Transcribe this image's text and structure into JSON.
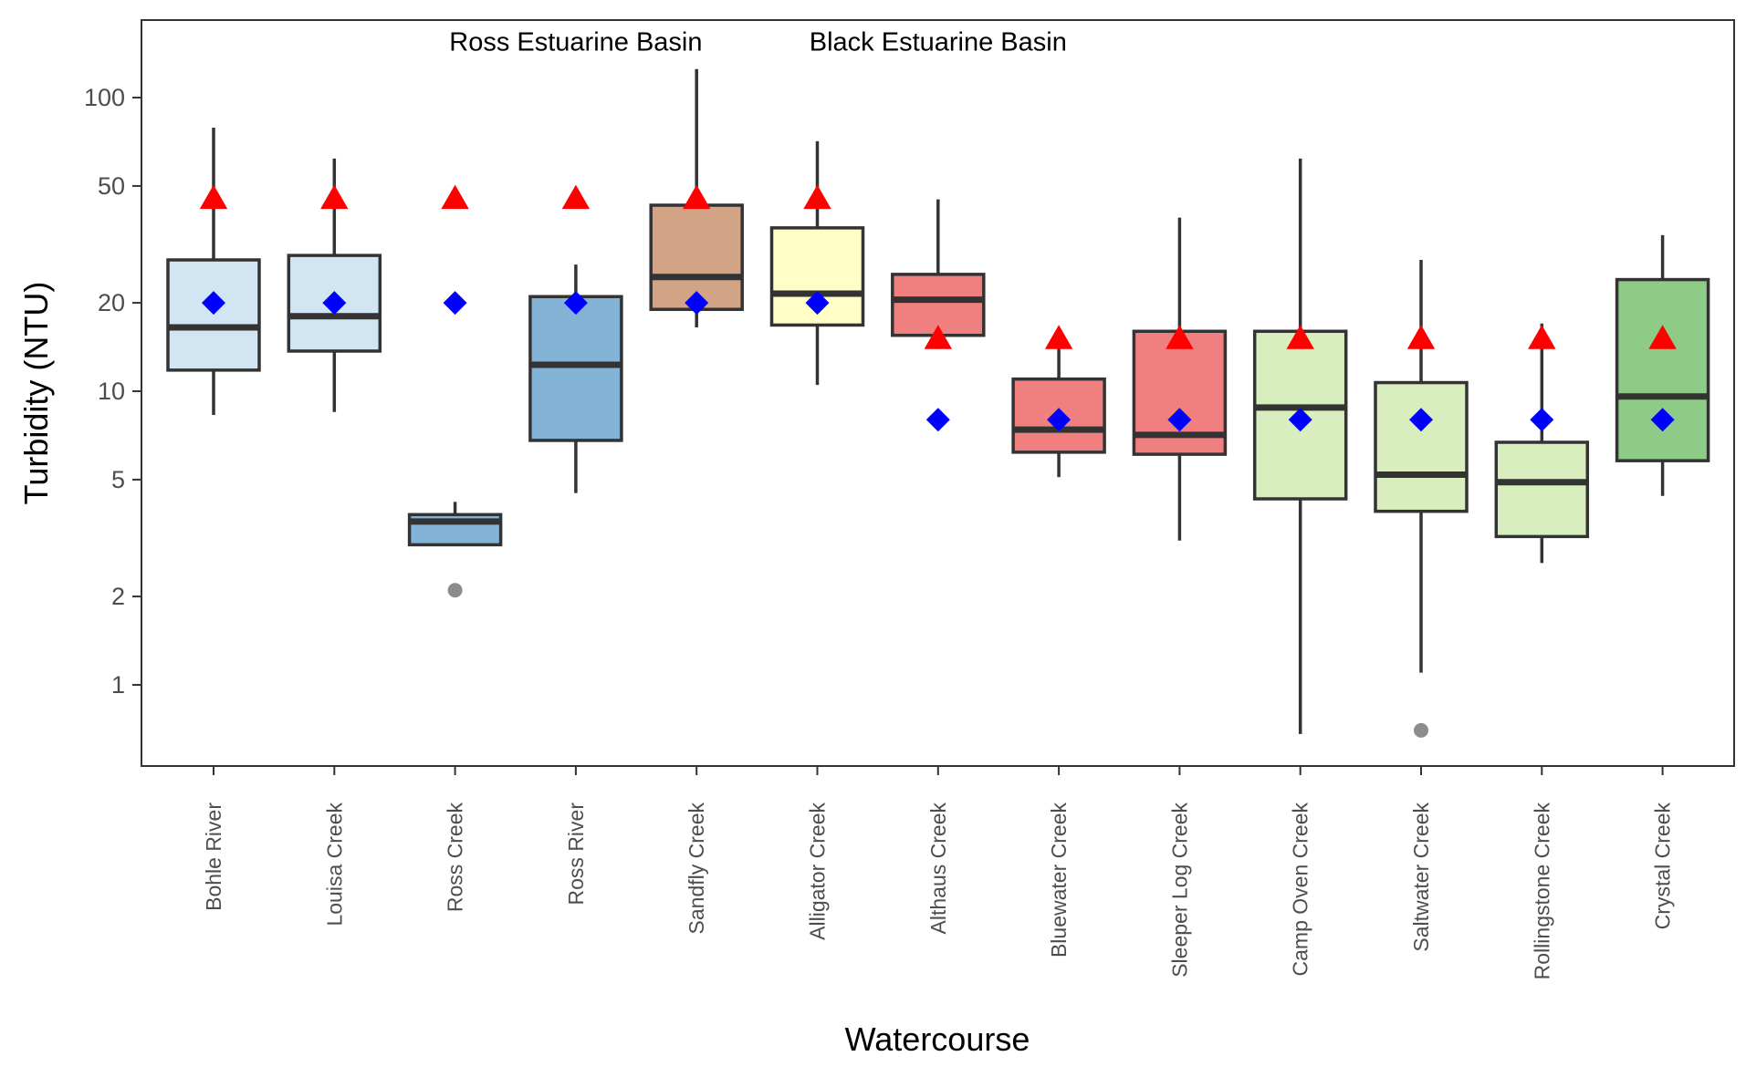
{
  "chart_data": {
    "type": "box",
    "xlabel": "Watercourse",
    "ylabel": "Turbidity (NTU)",
    "yscale": "log",
    "ylim": [
      0.5,
      200
    ],
    "yticks": [
      1,
      2,
      5,
      10,
      20,
      50,
      100
    ],
    "grid": false,
    "legend": "none",
    "annotations": [
      {
        "text": "Ross Estuarine Basin",
        "x_category": "Ross River",
        "y": 155
      },
      {
        "text": "Black Estuarine Basin",
        "x_category": "Althaus Creek",
        "y": 155
      }
    ],
    "categories": [
      "Bohle River",
      "Louisa Creek",
      "Ross Creek",
      "Ross River",
      "Sandfly Creek",
      "Alligator Creek",
      "Althaus Creek",
      "Bluewater Creek",
      "Sleeper Log Creek",
      "Camp Oven Creek",
      "Saltwater Creek",
      "Rollingstone Creek",
      "Crystal Creek"
    ],
    "boxes": [
      {
        "category": "Bohle River",
        "whisker_low": 8.3,
        "q1": 11.8,
        "median": 16.5,
        "q3": 28,
        "whisker_high": 79,
        "outliers": [],
        "fill": "#d2e5f3"
      },
      {
        "category": "Louisa Creek",
        "whisker_low": 8.5,
        "q1": 13.7,
        "median": 18,
        "q3": 29,
        "whisker_high": 62,
        "outliers": [],
        "fill": "#d2e5f3"
      },
      {
        "category": "Ross Creek",
        "whisker_low": 3.0,
        "q1": 3.0,
        "median": 3.6,
        "q3": 3.8,
        "whisker_high": 4.2,
        "outliers": [
          2.1
        ],
        "fill": "#83b4d7"
      },
      {
        "category": "Ross River",
        "whisker_low": 4.5,
        "q1": 6.8,
        "median": 12.3,
        "q3": 21,
        "whisker_high": 27,
        "outliers": [],
        "fill": "#83b4d7"
      },
      {
        "category": "Sandfly Creek",
        "whisker_low": 16.5,
        "q1": 19,
        "median": 24.5,
        "q3": 43,
        "whisker_high": 125,
        "outliers": [],
        "fill": "#d3a385"
      },
      {
        "category": "Alligator Creek",
        "whisker_low": 10.5,
        "q1": 16.8,
        "median": 21.5,
        "q3": 36,
        "whisker_high": 71,
        "outliers": [],
        "fill": "#fefec6"
      },
      {
        "category": "Althaus Creek",
        "whisker_low": 15.5,
        "q1": 15.5,
        "median": 20.5,
        "q3": 25,
        "whisker_high": 45,
        "outliers": [],
        "fill": "#f08080"
      },
      {
        "category": "Bluewater Creek",
        "whisker_low": 5.1,
        "q1": 6.2,
        "median": 7.4,
        "q3": 11,
        "whisker_high": 14.5,
        "outliers": [],
        "fill": "#f08080"
      },
      {
        "category": "Sleeper Log Creek",
        "whisker_low": 3.1,
        "q1": 6.1,
        "median": 7.1,
        "q3": 16,
        "whisker_high": 39,
        "outliers": [],
        "fill": "#f08080"
      },
      {
        "category": "Camp Oven Creek",
        "whisker_low": 0.68,
        "q1": 4.3,
        "median": 8.8,
        "q3": 16,
        "whisker_high": 62,
        "outliers": [],
        "fill": "#d8eebf"
      },
      {
        "category": "Saltwater Creek",
        "whisker_low": 1.1,
        "q1": 3.9,
        "median": 5.2,
        "q3": 10.7,
        "whisker_high": 28,
        "outliers": [
          0.7
        ],
        "fill": "#d8eebf"
      },
      {
        "category": "Rollingstone Creek",
        "whisker_low": 2.6,
        "q1": 3.2,
        "median": 4.9,
        "q3": 6.7,
        "whisker_high": 17,
        "outliers": [],
        "fill": "#d8eebf"
      },
      {
        "category": "Crystal Creek",
        "whisker_low": 4.4,
        "q1": 5.8,
        "median": 9.6,
        "q3": 24,
        "whisker_high": 34,
        "outliers": [],
        "fill": "#8dcb87"
      }
    ],
    "markers": {
      "triangles": {
        "color": "#ff0000",
        "values": [
          45,
          45,
          45,
          45,
          45,
          45,
          15,
          15,
          15,
          15,
          15,
          15,
          15
        ]
      },
      "diamonds": {
        "color": "#0000ff",
        "values": [
          20,
          20,
          20,
          20,
          20,
          20,
          8,
          8,
          8,
          8,
          8,
          8,
          8
        ]
      }
    },
    "colors": {
      "box_line": "#333333",
      "outlier": "#808080"
    }
  }
}
